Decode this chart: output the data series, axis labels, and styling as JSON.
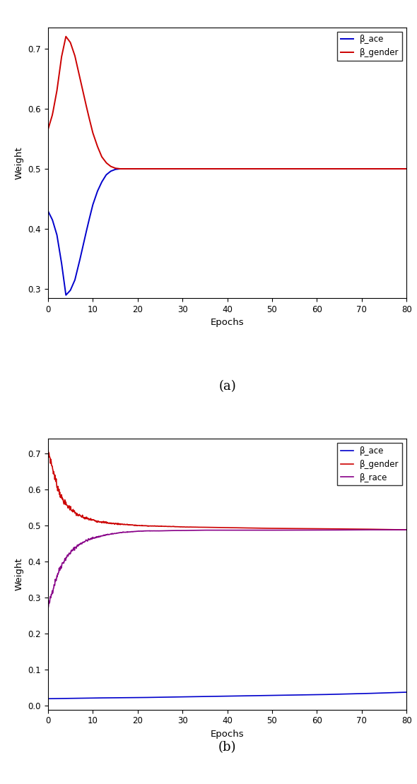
{
  "plot_a": {
    "title": "(a)",
    "xlabel": "Epochs",
    "ylabel": "Weight",
    "xlim": [
      0,
      80
    ],
    "ylim": [
      0.285,
      0.735
    ],
    "yticks": [
      0.3,
      0.4,
      0.5,
      0.6,
      0.7
    ],
    "xticks": [
      0,
      10,
      20,
      30,
      40,
      50,
      60,
      70,
      80
    ],
    "legend": [
      "β_ace",
      "β_gender"
    ],
    "colors": {
      "age": "#0000cc",
      "gender": "#cc0000"
    }
  },
  "plot_b": {
    "title": "(b)",
    "xlabel": "Epochs",
    "ylabel": "Weight",
    "xlim": [
      0,
      80
    ],
    "ylim": [
      -0.01,
      0.74
    ],
    "yticks": [
      0.0,
      0.1,
      0.2,
      0.3,
      0.4,
      0.5,
      0.6,
      0.7
    ],
    "xticks": [
      0,
      10,
      20,
      30,
      40,
      50,
      60,
      70,
      80
    ],
    "legend": [
      "β_ace",
      "β_gender",
      "β_race"
    ],
    "colors": {
      "age": "#0000cc",
      "gender": "#cc0000",
      "race": "#880088"
    }
  }
}
